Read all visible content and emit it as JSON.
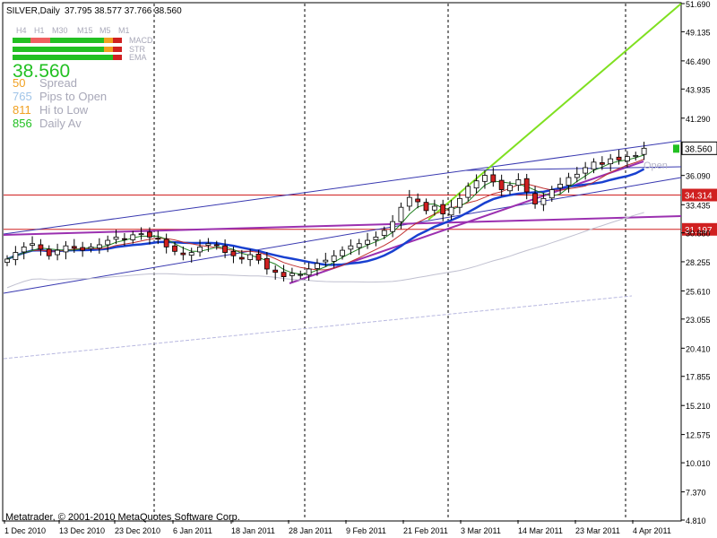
{
  "header": {
    "title": "SILVER,Daily",
    "ohlc": "37.795 38.577 37.766 38.560"
  },
  "timeframes": [
    "H4",
    "H1",
    "M30",
    "M15",
    "M5",
    "M1"
  ],
  "indicator_rows": [
    "MACD",
    "STR",
    "EMA"
  ],
  "info": {
    "price": "38.560",
    "rows": [
      {
        "value": "50",
        "label": "Spread",
        "color": "#f0a020"
      },
      {
        "value": "765",
        "label": "Pips to Open",
        "color": "#9fc4e8"
      },
      {
        "value": "811",
        "label": "Hi to Low",
        "color": "#f0a020"
      },
      {
        "value": "856",
        "label": "Daily Av",
        "color": "#22c022"
      }
    ]
  },
  "footer": {
    "copyright": "Metatrader, © 2001-2010 MetaQuotes Software Corp."
  },
  "chart_data": {
    "type": "candlestick",
    "symbol": "SILVER",
    "timeframe": "Daily",
    "y_ticks": [
      "51.690",
      "49.135",
      "46.490",
      "43.935",
      "41.290",
      "38.560",
      "36.090",
      "34.314",
      "33.435",
      "31.197",
      "30.880",
      "28.255",
      "25.610",
      "23.055",
      "20.410",
      "17.855",
      "15.210",
      "12.575",
      "10.010",
      "7.370",
      "4.810"
    ],
    "ylim": [
      4.81,
      51.69
    ],
    "x_ticks": [
      "1 Dec 2010",
      "13 Dec 2010",
      "23 Dec 2010",
      "6 Jan 2011",
      "18 Jan 2011",
      "28 Jan 2011",
      "9 Feb 2011",
      "21 Feb 2011",
      "3 Mar 2011",
      "14 Mar 2011",
      "23 Mar 2011",
      "4 Apr 2011"
    ],
    "current_price": "38.560",
    "price_levels": [
      {
        "label": "34.314",
        "value": 34.314
      },
      {
        "label": "31.197",
        "value": 31.197
      }
    ],
    "annotation": "Open",
    "closes": [
      28.5,
      29.1,
      29.6,
      29.9,
      29.4,
      28.8,
      29.3,
      29.7,
      29.5,
      29.3,
      29.6,
      29.8,
      30.2,
      30.5,
      30.3,
      30.7,
      30.8,
      30.5,
      30.3,
      29.6,
      29.2,
      28.9,
      29.1,
      29.6,
      29.9,
      29.7,
      29.1,
      28.8,
      28.5,
      28.9,
      28.4,
      27.6,
      27.3,
      26.9,
      27.2,
      27.1,
      27.6,
      28.1,
      28.4,
      28.8,
      29.3,
      29.7,
      29.9,
      30.2,
      30.5,
      31.1,
      31.9,
      33.2,
      34.1,
      33.7,
      32.9,
      33.3,
      32.6,
      33.2,
      34.0,
      35.1,
      35.6,
      36.1,
      35.5,
      34.8,
      35.2,
      35.7,
      34.6,
      33.5,
      34.0,
      34.8,
      35.3,
      35.9,
      36.2,
      36.8,
      37.3,
      37.1,
      37.6,
      37.5,
      37.8,
      37.9,
      38.56
    ]
  }
}
